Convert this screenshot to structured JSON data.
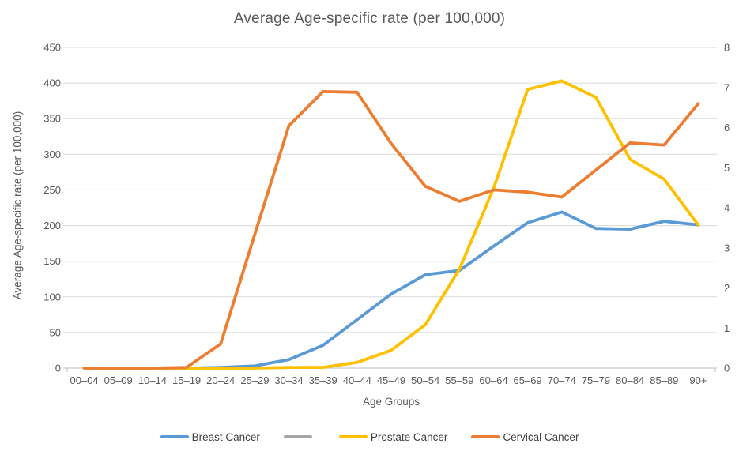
{
  "chart_data": {
    "type": "line",
    "title": "Average Age-specific rate (per 100,000)",
    "xlabel": "Age Groups",
    "ylabel": "Average Age-specific rate (per 100,000)",
    "categories": [
      "00–04",
      "05–09",
      "10–14",
      "15–19",
      "20–24",
      "25–29",
      "30–34",
      "35–39",
      "40–44",
      "45–49",
      "50–54",
      "55–59",
      "60–64",
      "65–69",
      "70–74",
      "75–79",
      "80–84",
      "85–89",
      "90+"
    ],
    "series": [
      {
        "name": "Breast Cancer",
        "color": "#5B9BD5",
        "values": [
          0,
          0,
          0,
          0,
          1,
          3,
          12,
          32,
          68,
          104,
          131,
          137,
          171,
          204,
          219,
          196,
          195,
          206,
          201
        ]
      },
      {
        "name": "",
        "color": "#A5A5A5",
        "values": []
      },
      {
        "name": "Prostate Cancer",
        "color": "#FFC000",
        "values": [
          0,
          0,
          0,
          0,
          0,
          0,
          1,
          1,
          8,
          25,
          61,
          139,
          252,
          391,
          403,
          380,
          293,
          265,
          201
        ]
      },
      {
        "name": "Cervical Cancer",
        "color": "#ED7D31",
        "values": [
          0,
          0,
          0,
          1,
          34,
          188,
          340,
          388,
          387,
          315,
          255,
          234,
          250,
          247,
          240,
          278,
          316,
          313,
          371
        ]
      }
    ],
    "axes": {
      "left": {
        "min": 0,
        "max": 450,
        "step": 50,
        "ticks": [
          450,
          400,
          350,
          300,
          250,
          200,
          150,
          100,
          50,
          0
        ]
      },
      "right": {
        "min": 0,
        "max": 8,
        "step": 1,
        "ticks": [
          8,
          7,
          6,
          5,
          4,
          3,
          2,
          1,
          0
        ]
      }
    },
    "grid": "horizontal",
    "legend_position": "bottom",
    "colors": {
      "gridline": "#D9D9D9",
      "axis_line": "#BFBFBF",
      "text": "#595959"
    }
  }
}
